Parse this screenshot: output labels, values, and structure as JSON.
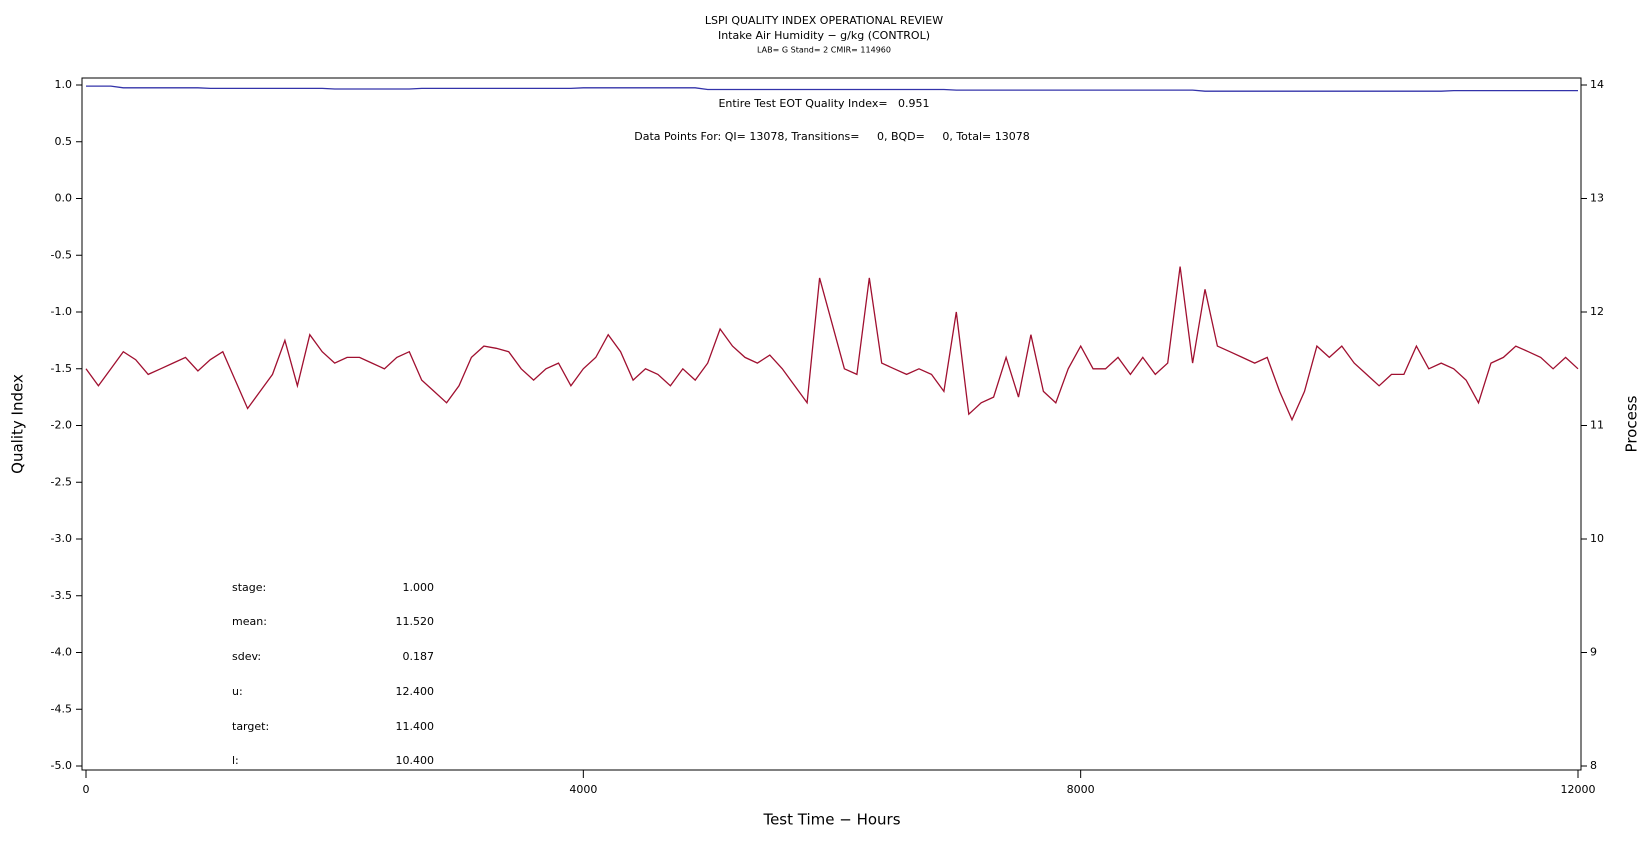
{
  "chart_data": {
    "type": "line",
    "title": "LSPI QUALITY INDEX OPERATIONAL REVIEW",
    "subtitle": "Intake Air Humidity − g/kg (CONTROL)",
    "caption": "LAB= G Stand= 2 CMIR= 114960",
    "x_label": "Test Time − Hours",
    "y_label": "Quality Index",
    "y2_label": "Process",
    "annotations": [
      "Entire Test EOT Quality Index=   0.951",
      "Data Points For: QI= 13078, Transitions=     0, BQD=     0, Total= 13078"
    ],
    "stats": [
      [
        "stage:",
        "1.000"
      ],
      [
        "mean:",
        "11.520"
      ],
      [
        "sdev:",
        "0.187"
      ],
      [
        "u:",
        "12.400"
      ],
      [
        "target:",
        "11.400"
      ],
      [
        "l:",
        "10.400"
      ]
    ],
    "xlim": [
      0,
      12000
    ],
    "xticks": [
      0,
      4000,
      8000,
      12000
    ],
    "ylim": [
      -5,
      1
    ],
    "yticks": [
      {
        "value": 1,
        "label": "1.0"
      },
      0.5,
      {
        "value": 0,
        "label": "0.0"
      },
      -0.5,
      {
        "value": -1,
        "label": "-1.0"
      },
      -1.5,
      {
        "value": -2,
        "label": "-2.0"
      },
      -2.5,
      {
        "value": -3,
        "label": "-3.0"
      },
      -3.5,
      {
        "value": -4,
        "label": "-4.0"
      },
      -4.5,
      {
        "value": -5,
        "label": "-5.0"
      }
    ],
    "y2lim": [
      8,
      14
    ],
    "y2ticks": [
      8,
      9,
      10,
      11,
      12,
      13,
      14
    ],
    "x": [
      0,
      100,
      200,
      300,
      400,
      500,
      600,
      700,
      800,
      900,
      1000,
      1100,
      1200,
      1300,
      1400,
      1500,
      1600,
      1700,
      1800,
      1900,
      2000,
      2100,
      2200,
      2300,
      2400,
      2500,
      2600,
      2700,
      2800,
      2900,
      3000,
      3100,
      3200,
      3300,
      3400,
      3500,
      3600,
      3700,
      3800,
      3900,
      4000,
      4100,
      4200,
      4300,
      4400,
      4500,
      4600,
      4700,
      4800,
      4900,
      5000,
      5100,
      5200,
      5300,
      5400,
      5500,
      5600,
      5700,
      5800,
      5900,
      6000,
      6100,
      6200,
      6300,
      6400,
      6500,
      6600,
      6700,
      6800,
      6900,
      7000,
      7100,
      7200,
      7300,
      7400,
      7500,
      7600,
      7700,
      7800,
      7900,
      8000,
      8100,
      8200,
      8300,
      8400,
      8500,
      8600,
      8700,
      8800,
      8900,
      9000,
      9100,
      9200,
      9300,
      9400,
      9500,
      9600,
      9700,
      9800,
      9900,
      10000,
      10100,
      10200,
      10300,
      10400,
      10500,
      10600,
      10700,
      10800,
      10900,
      11000,
      11100,
      11200,
      11300,
      11400,
      11500,
      11600,
      11700,
      11800,
      11900,
      12000
    ],
    "series": [
      {
        "name": "Quality Index",
        "color": "#3333aa",
        "axis": "y",
        "values": [
          0.99,
          0.99,
          0.99,
          0.975,
          0.975,
          0.975,
          0.975,
          0.975,
          0.975,
          0.975,
          0.97,
          0.97,
          0.97,
          0.97,
          0.97,
          0.97,
          0.97,
          0.97,
          0.97,
          0.97,
          0.965,
          0.965,
          0.965,
          0.965,
          0.965,
          0.965,
          0.965,
          0.97,
          0.97,
          0.97,
          0.97,
          0.97,
          0.97,
          0.97,
          0.97,
          0.97,
          0.97,
          0.97,
          0.97,
          0.97,
          0.975,
          0.975,
          0.975,
          0.975,
          0.975,
          0.975,
          0.975,
          0.975,
          0.975,
          0.975,
          0.96,
          0.96,
          0.96,
          0.96,
          0.96,
          0.96,
          0.96,
          0.96,
          0.96,
          0.96,
          0.96,
          0.96,
          0.96,
          0.96,
          0.96,
          0.96,
          0.96,
          0.96,
          0.96,
          0.96,
          0.955,
          0.955,
          0.955,
          0.955,
          0.955,
          0.955,
          0.955,
          0.955,
          0.955,
          0.955,
          0.955,
          0.955,
          0.955,
          0.955,
          0.955,
          0.955,
          0.955,
          0.955,
          0.955,
          0.955,
          0.945,
          0.945,
          0.945,
          0.945,
          0.945,
          0.945,
          0.945,
          0.945,
          0.945,
          0.945,
          0.945,
          0.945,
          0.945,
          0.945,
          0.945,
          0.945,
          0.945,
          0.945,
          0.945,
          0.945,
          0.951,
          0.951,
          0.951,
          0.951,
          0.951,
          0.951,
          0.951,
          0.951,
          0.951,
          0.951,
          0.951
        ]
      },
      {
        "name": "Process",
        "color": "#a01030",
        "axis": "y2",
        "values": [
          11.5,
          11.35,
          11.5,
          11.65,
          11.58,
          11.45,
          11.5,
          11.55,
          11.6,
          11.48,
          11.58,
          11.65,
          11.4,
          11.15,
          11.3,
          11.45,
          11.75,
          11.35,
          11.8,
          11.65,
          11.55,
          11.6,
          11.6,
          11.55,
          11.5,
          11.6,
          11.65,
          11.4,
          11.3,
          11.2,
          11.35,
          11.6,
          11.7,
          11.68,
          11.65,
          11.5,
          11.4,
          11.5,
          11.55,
          11.35,
          11.5,
          11.6,
          11.8,
          11.65,
          11.4,
          11.5,
          11.45,
          11.35,
          11.5,
          11.4,
          11.55,
          11.85,
          11.7,
          11.6,
          11.55,
          11.62,
          11.5,
          11.35,
          11.2,
          12.3,
          11.9,
          11.5,
          11.45,
          12.3,
          11.55,
          11.5,
          11.45,
          11.5,
          11.45,
          11.3,
          12.0,
          11.1,
          11.2,
          11.25,
          11.6,
          11.25,
          11.8,
          11.3,
          11.2,
          11.5,
          11.7,
          11.5,
          11.5,
          11.6,
          11.45,
          11.6,
          11.45,
          11.55,
          12.4,
          11.55,
          12.2,
          11.7,
          11.65,
          11.6,
          11.55,
          11.6,
          11.3,
          11.05,
          11.3,
          11.7,
          11.6,
          11.7,
          11.55,
          11.45,
          11.35,
          11.45,
          11.45,
          11.7,
          11.5,
          11.55,
          11.5,
          11.4,
          11.2,
          11.55,
          11.6,
          11.7,
          11.65,
          11.6,
          11.5,
          11.6,
          11.5
        ]
      }
    ]
  }
}
